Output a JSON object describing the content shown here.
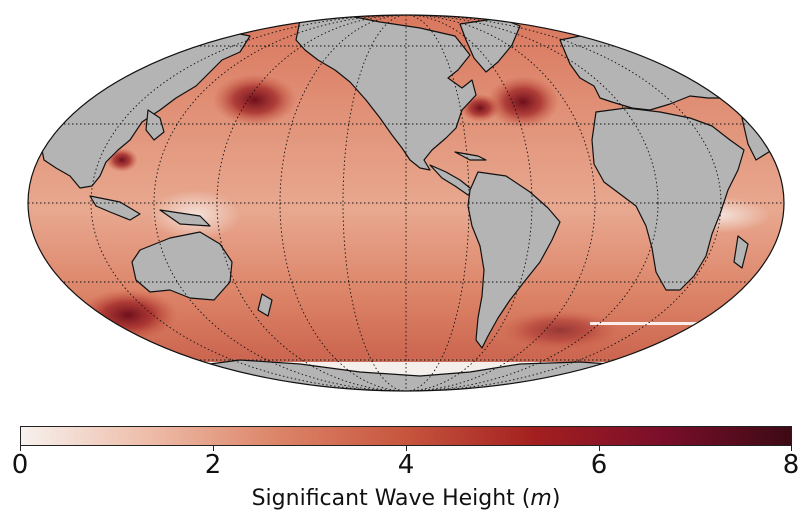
{
  "map": {
    "projection": "mollweide",
    "ocean_color_low": "#f7ede8",
    "ocean_color_mid": "#dc8468",
    "land_color": "#b4b4b4",
    "coastline_color": "#111111",
    "graticule": "dotted"
  },
  "colorbar": {
    "label_text": "Significant Wave Height (",
    "label_unit": "m",
    "label_close": ")",
    "min": 0,
    "max": 8,
    "ticks": [
      "0",
      "2",
      "4",
      "6",
      "8"
    ],
    "colors": [
      "#f7f1ee",
      "#eebca8",
      "#dc8468",
      "#c7553e",
      "#a31f1f",
      "#7a0e2a",
      "#3d0a14"
    ]
  }
}
